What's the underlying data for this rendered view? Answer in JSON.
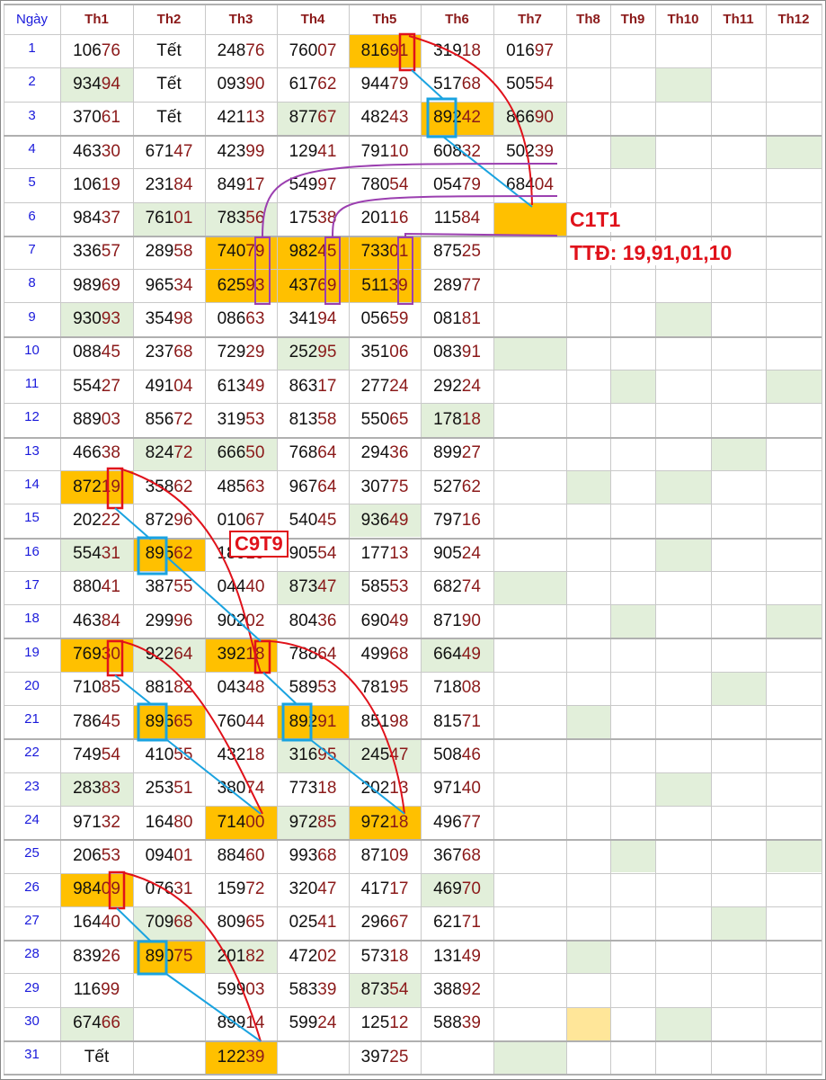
{
  "headers": [
    "Ngày",
    "Th1",
    "Th2",
    "Th3",
    "Th4",
    "Th5",
    "Th6",
    "Th7",
    "Th8",
    "Th9",
    "Th10",
    "Th11",
    "Th12"
  ],
  "rows": [
    {
      "day": "1",
      "cells": [
        "10676",
        "Tết",
        "24876",
        "76007",
        "81691",
        "31918",
        "01697",
        "",
        "",
        "",
        "",
        ""
      ]
    },
    {
      "day": "2",
      "cells": [
        "93494",
        "Tết",
        "09390",
        "61762",
        "94479",
        "51768",
        "50554",
        "",
        "",
        "",
        "",
        ""
      ]
    },
    {
      "day": "3",
      "cells": [
        "37061",
        "Tết",
        "42113",
        "87767",
        "48243",
        "89242",
        "86690",
        "",
        "",
        "",
        "",
        ""
      ]
    },
    {
      "day": "4",
      "cells": [
        "46330",
        "67147",
        "42399",
        "12941",
        "79110",
        "60832",
        "50239",
        "",
        "",
        "",
        "",
        ""
      ]
    },
    {
      "day": "5",
      "cells": [
        "10619",
        "23184",
        "84917",
        "54997",
        "78054",
        "05479",
        "68404",
        "",
        "",
        "",
        "",
        ""
      ]
    },
    {
      "day": "6",
      "cells": [
        "98437",
        "76101",
        "78356",
        "17538",
        "20116",
        "11584",
        "",
        "",
        "",
        "",
        "",
        ""
      ]
    },
    {
      "day": "7",
      "cells": [
        "33657",
        "28958",
        "74079",
        "98245",
        "73301",
        "87525",
        "",
        "",
        "",
        "",
        "",
        ""
      ]
    },
    {
      "day": "8",
      "cells": [
        "98969",
        "96534",
        "62593",
        "43769",
        "51139",
        "28977",
        "",
        "",
        "",
        "",
        "",
        ""
      ]
    },
    {
      "day": "9",
      "cells": [
        "93093",
        "35498",
        "08663",
        "34194",
        "05659",
        "08181",
        "",
        "",
        "",
        "",
        "",
        ""
      ]
    },
    {
      "day": "10",
      "cells": [
        "08845",
        "23768",
        "72929",
        "25295",
        "35106",
        "08391",
        "",
        "",
        "",
        "",
        "",
        ""
      ]
    },
    {
      "day": "11",
      "cells": [
        "55427",
        "49104",
        "61349",
        "86317",
        "27724",
        "29224",
        "",
        "",
        "",
        "",
        "",
        ""
      ]
    },
    {
      "day": "12",
      "cells": [
        "88903",
        "85672",
        "31953",
        "81358",
        "55065",
        "17818",
        "",
        "",
        "",
        "",
        "",
        ""
      ]
    },
    {
      "day": "13",
      "cells": [
        "46638",
        "82472",
        "66650",
        "76864",
        "29436",
        "89927",
        "",
        "",
        "",
        "",
        "",
        ""
      ]
    },
    {
      "day": "14",
      "cells": [
        "87219",
        "35862",
        "48563",
        "96764",
        "30775",
        "52762",
        "",
        "",
        "",
        "",
        "",
        ""
      ]
    },
    {
      "day": "15",
      "cells": [
        "20222",
        "87296",
        "01067",
        "54045",
        "93649",
        "79716",
        "",
        "",
        "",
        "",
        "",
        ""
      ]
    },
    {
      "day": "16",
      "cells": [
        "55431",
        "89562",
        "18919",
        "90554",
        "17713",
        "90524",
        "",
        "",
        "",
        "",
        "",
        ""
      ]
    },
    {
      "day": "17",
      "cells": [
        "88041",
        "38755",
        "04440",
        "87347",
        "58553",
        "68274",
        "",
        "",
        "",
        "",
        "",
        ""
      ]
    },
    {
      "day": "18",
      "cells": [
        "46384",
        "29996",
        "90202",
        "80436",
        "69049",
        "87190",
        "",
        "",
        "",
        "",
        "",
        ""
      ]
    },
    {
      "day": "19",
      "cells": [
        "76930",
        "92264",
        "39218",
        "78864",
        "49968",
        "66449",
        "",
        "",
        "",
        "",
        "",
        ""
      ]
    },
    {
      "day": "20",
      "cells": [
        "71085",
        "88182",
        "04348",
        "58953",
        "78195",
        "71808",
        "",
        "",
        "",
        "",
        "",
        ""
      ]
    },
    {
      "day": "21",
      "cells": [
        "78645",
        "89665",
        "76044",
        "89291",
        "85198",
        "81571",
        "",
        "",
        "",
        "",
        "",
        ""
      ]
    },
    {
      "day": "22",
      "cells": [
        "74954",
        "41055",
        "43218",
        "31695",
        "24547",
        "50846",
        "",
        "",
        "",
        "",
        "",
        ""
      ]
    },
    {
      "day": "23",
      "cells": [
        "28383",
        "25351",
        "38074",
        "77318",
        "20213",
        "97140",
        "",
        "",
        "",
        "",
        "",
        ""
      ]
    },
    {
      "day": "24",
      "cells": [
        "97132",
        "16480",
        "71400",
        "97285",
        "97218",
        "49677",
        "",
        "",
        "",
        "",
        "",
        ""
      ]
    },
    {
      "day": "25",
      "cells": [
        "20653",
        "09401",
        "88460",
        "99368",
        "87109",
        "36768",
        "",
        "",
        "",
        "",
        "",
        ""
      ]
    },
    {
      "day": "26",
      "cells": [
        "98409",
        "07631",
        "15972",
        "32047",
        "41717",
        "46970",
        "",
        "",
        "",
        "",
        "",
        ""
      ]
    },
    {
      "day": "27",
      "cells": [
        "16440",
        "70968",
        "80965",
        "02541",
        "29667",
        "62171",
        "",
        "",
        "",
        "",
        "",
        ""
      ]
    },
    {
      "day": "28",
      "cells": [
        "83926",
        "89075",
        "20182",
        "47202",
        "57318",
        "13149",
        "",
        "",
        "",
        "",
        "",
        ""
      ]
    },
    {
      "day": "29",
      "cells": [
        "11699",
        "",
        "59903",
        "58339",
        "87354",
        "38892",
        "",
        "",
        "",
        "",
        "",
        ""
      ]
    },
    {
      "day": "30",
      "cells": [
        "67466",
        "",
        "89914",
        "59924",
        "12512",
        "58839",
        "",
        "",
        "",
        "",
        "",
        ""
      ]
    },
    {
      "day": "31",
      "cells": [
        "Tết",
        "",
        "12239",
        "",
        "39725",
        "",
        "",
        "",
        "",
        "",
        "",
        ""
      ]
    }
  ],
  "highlights": {
    "orange": [
      "1-5",
      "3-6",
      "6-7",
      "7-3",
      "7-4",
      "7-5",
      "8-3",
      "8-4",
      "8-5",
      "14-1",
      "16-2",
      "19-1",
      "19-3",
      "21-2",
      "21-4",
      "24-3",
      "24-5",
      "26-1",
      "28-2",
      "31-3"
    ],
    "green": [
      "2-1",
      "2-10",
      "3-4",
      "3-7",
      "4-9",
      "4-12",
      "6-2",
      "6-3",
      "9-1",
      "9-10",
      "10-4",
      "10-7",
      "11-9",
      "11-12",
      "12-6",
      "13-2",
      "13-3",
      "13-11",
      "14-8",
      "14-10",
      "15-5",
      "16-1",
      "16-10",
      "17-4",
      "17-7",
      "18-9",
      "18-12",
      "19-6",
      "19-2",
      "20-11",
      "21-8",
      "22-5",
      "22-4",
      "23-1",
      "23-10",
      "24-4",
      "25-9",
      "25-12",
      "26-6",
      "27-2",
      "27-11",
      "28-3",
      "28-8",
      "29-5",
      "30-1",
      "30-10",
      "31-7"
    ],
    "yellow": [
      "30-8"
    ]
  },
  "annotations": {
    "c1t1": "C1T1",
    "ttd": "TTĐ: 19,91,01,10",
    "c9t9": "C9T9"
  },
  "colors": {
    "day_number": "#1a1adb",
    "header": "#8b1a1a",
    "digit_highlight": "#8b1a1a",
    "orange_cell": "#ffc000",
    "green_cell": "#e2efda",
    "yellow_cell": "#ffe699",
    "red_line": "#e0121b",
    "blue_line": "#1aa3e0",
    "purple_line": "#9b3fb0"
  }
}
